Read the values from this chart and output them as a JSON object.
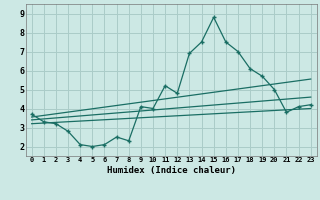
{
  "xlabel": "Humidex (Indice chaleur)",
  "background_color": "#cce8e4",
  "grid_color": "#aaccc8",
  "line_color": "#1a6e64",
  "xlim": [
    -0.5,
    23.5
  ],
  "ylim": [
    1.5,
    9.5
  ],
  "yticks": [
    2,
    3,
    4,
    5,
    6,
    7,
    8,
    9
  ],
  "xticks": [
    0,
    1,
    2,
    3,
    4,
    5,
    6,
    7,
    8,
    9,
    10,
    11,
    12,
    13,
    14,
    15,
    16,
    17,
    18,
    19,
    20,
    21,
    22,
    23
  ],
  "series1_x": [
    0,
    1,
    2,
    3,
    4,
    5,
    6,
    7,
    8,
    9,
    10,
    11,
    12,
    13,
    14,
    15,
    16,
    17,
    18,
    19,
    20,
    21,
    22,
    23
  ],
  "series1_y": [
    3.7,
    3.3,
    3.2,
    2.8,
    2.1,
    2.0,
    2.1,
    2.5,
    2.3,
    4.1,
    4.0,
    5.2,
    4.8,
    6.9,
    7.5,
    8.8,
    7.5,
    7.0,
    6.1,
    5.7,
    5.0,
    3.8,
    4.1,
    4.2
  ],
  "line2_x": [
    0,
    23
  ],
  "line2_y": [
    3.55,
    5.55
  ],
  "line3_x": [
    0,
    23
  ],
  "line3_y": [
    3.4,
    4.6
  ],
  "line4_x": [
    0,
    23
  ],
  "line4_y": [
    3.2,
    4.0
  ]
}
